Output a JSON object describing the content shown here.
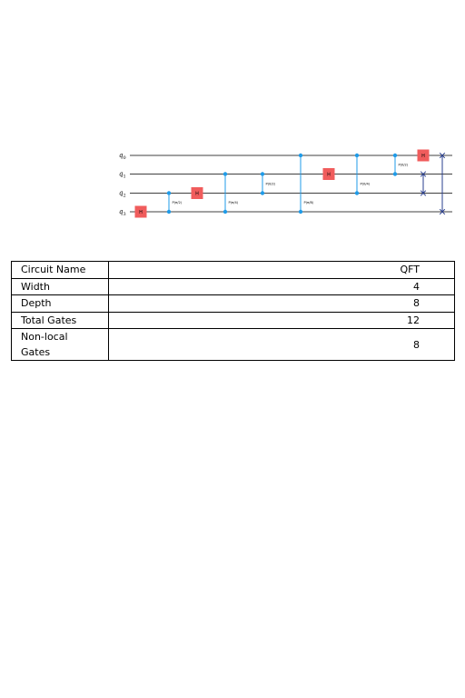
{
  "circuit": {
    "qubits": [
      {
        "base": "q",
        "index": "0"
      },
      {
        "base": "q",
        "index": "1"
      },
      {
        "base": "q",
        "index": "2"
      },
      {
        "base": "q",
        "index": "3"
      }
    ],
    "gate_label": "H",
    "phase_label": "P(π/2)",
    "colors": {
      "h_gate": "#f05c5c",
      "control": "#1f9be8",
      "swap": "#2a3f8f",
      "wire": "#000000"
    },
    "operations": [
      {
        "type": "h",
        "qubit": 3
      },
      {
        "type": "cp",
        "qubits": [
          2,
          3
        ],
        "label": "P(π/2)"
      },
      {
        "type": "h",
        "qubit": 2
      },
      {
        "type": "cp",
        "qubits": [
          1,
          3
        ],
        "label": "P(π/4)"
      },
      {
        "type": "cp",
        "qubits": [
          1,
          2
        ],
        "label": "P(π/2)"
      },
      {
        "type": "cp",
        "qubits": [
          0,
          3
        ],
        "label": "P(π/8)"
      },
      {
        "type": "h",
        "qubit": 1
      },
      {
        "type": "cp",
        "qubits": [
          0,
          2
        ],
        "label": "P(π/4)"
      },
      {
        "type": "cp",
        "qubits": [
          0,
          1
        ],
        "label": "P(π/2)"
      },
      {
        "type": "h",
        "qubit": 0
      },
      {
        "type": "swap",
        "qubits": [
          1,
          2
        ]
      },
      {
        "type": "swap",
        "qubits": [
          0,
          3
        ]
      }
    ]
  },
  "stats": [
    {
      "key": "Circuit Name",
      "value": "QFT"
    },
    {
      "key": "Width",
      "value": "4"
    },
    {
      "key": "Depth",
      "value": "8"
    },
    {
      "key": "Total Gates",
      "value": "12"
    },
    {
      "key": "Non-local Gates",
      "value": "8"
    }
  ]
}
